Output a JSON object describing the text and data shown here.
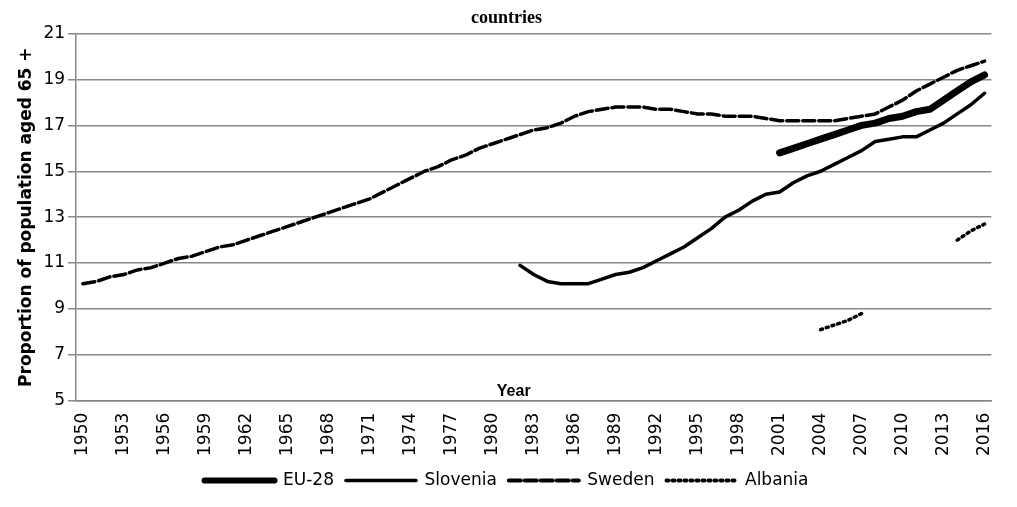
{
  "chart_data": {
    "type": "line",
    "title": "countries",
    "xlabel": "Year",
    "ylabel": "Proportion of population aged 65 +",
    "categories": [
      "1950",
      null,
      null,
      "1953",
      null,
      null,
      "1956",
      null,
      null,
      "1959",
      null,
      null,
      "1962",
      null,
      null,
      "1965",
      null,
      null,
      "1968",
      null,
      null,
      "1971",
      null,
      null,
      "1974",
      null,
      null,
      "1977",
      null,
      null,
      "1980",
      null,
      null,
      "1983",
      null,
      null,
      "1986",
      null,
      null,
      "1989",
      null,
      null,
      "1992",
      null,
      null,
      "1995",
      null,
      null,
      "1998",
      null,
      null,
      "2001",
      null,
      null,
      "2004",
      null,
      null,
      "2007",
      null,
      null,
      "2010",
      null,
      null,
      "2013",
      null,
      null,
      "2016"
    ],
    "series": [
      {
        "name": "EU-28",
        "color": "#000000",
        "line_style": "solid",
        "values": [
          null,
          null,
          null,
          null,
          null,
          null,
          null,
          null,
          null,
          null,
          null,
          null,
          null,
          null,
          null,
          null,
          null,
          null,
          null,
          null,
          null,
          null,
          null,
          null,
          null,
          null,
          null,
          null,
          null,
          null,
          null,
          null,
          null,
          null,
          null,
          null,
          null,
          null,
          null,
          null,
          null,
          null,
          null,
          null,
          null,
          null,
          null,
          null,
          null,
          null,
          null,
          15.8,
          16.0,
          16.2,
          16.4,
          16.6,
          16.8,
          17.0,
          17.1,
          17.3,
          17.4,
          17.6,
          17.7,
          18.1,
          18.5,
          18.9,
          19.2
        ]
      },
      {
        "name": "Slovenia",
        "color": "#000000",
        "line_style": "solid",
        "values": [
          null,
          null,
          null,
          null,
          null,
          null,
          null,
          null,
          null,
          null,
          null,
          null,
          null,
          null,
          null,
          null,
          null,
          null,
          null,
          null,
          null,
          null,
          null,
          null,
          null,
          null,
          null,
          null,
          null,
          null,
          null,
          null,
          10.9,
          10.5,
          10.2,
          10.1,
          10.1,
          10.1,
          10.3,
          10.5,
          10.6,
          10.8,
          11.1,
          11.4,
          11.7,
          12.1,
          12.5,
          13.0,
          13.3,
          13.7,
          14.0,
          14.1,
          14.5,
          14.8,
          15.0,
          15.3,
          15.6,
          15.9,
          16.3,
          16.4,
          16.5,
          16.5,
          16.8,
          17.1,
          17.5,
          17.9,
          18.4
        ]
      },
      {
        "name": "Sweden",
        "color": "#000000",
        "line_style": "dashed",
        "values": [
          10.1,
          10.2,
          10.4,
          10.5,
          10.7,
          10.8,
          11.0,
          11.2,
          11.3,
          11.5,
          11.7,
          11.8,
          12.0,
          12.2,
          12.4,
          12.6,
          12.8,
          13.0,
          13.2,
          13.4,
          13.6,
          13.8,
          14.1,
          14.4,
          14.7,
          15.0,
          15.2,
          15.5,
          15.7,
          16.0,
          16.2,
          16.4,
          16.6,
          16.8,
          16.9,
          17.1,
          17.4,
          17.6,
          17.7,
          17.8,
          17.8,
          17.8,
          17.7,
          17.7,
          17.6,
          17.5,
          17.5,
          17.4,
          17.4,
          17.4,
          17.3,
          17.2,
          17.2,
          17.2,
          17.2,
          17.2,
          17.3,
          17.4,
          17.5,
          17.8,
          18.1,
          18.5,
          18.8,
          19.1,
          19.4,
          19.6,
          19.8
        ]
      },
      {
        "name": "Albania",
        "color": "#000000",
        "line_style": "dotted",
        "values": [
          null,
          null,
          null,
          null,
          null,
          null,
          null,
          null,
          null,
          null,
          null,
          null,
          null,
          null,
          null,
          null,
          null,
          null,
          null,
          null,
          null,
          null,
          null,
          null,
          null,
          null,
          null,
          null,
          null,
          null,
          null,
          null,
          null,
          null,
          null,
          null,
          null,
          null,
          null,
          null,
          null,
          null,
          null,
          null,
          null,
          null,
          null,
          null,
          null,
          null,
          null,
          null,
          null,
          null,
          8.1,
          8.3,
          8.5,
          8.8,
          null,
          null,
          null,
          null,
          null,
          null,
          12.0,
          12.4,
          12.7
        ]
      }
    ],
    "ylim": [
      5,
      21
    ],
    "yticks": [
      5,
      7,
      9,
      11,
      13,
      15,
      17,
      19,
      21
    ],
    "grid": "y",
    "legend": "bottom",
    "marker": "none"
  }
}
